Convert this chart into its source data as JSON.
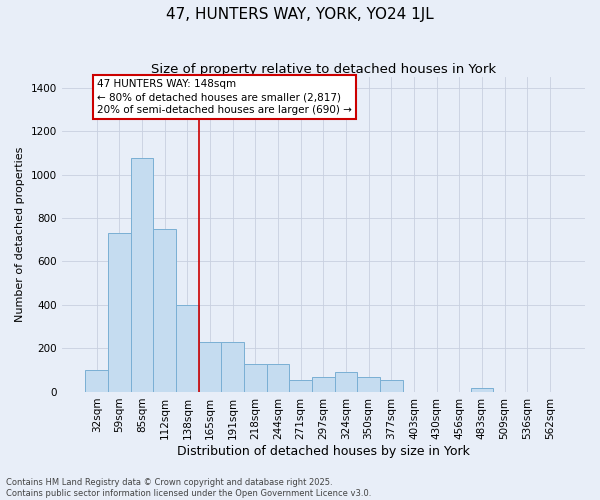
{
  "title": "47, HUNTERS WAY, YORK, YO24 1JL",
  "subtitle": "Size of property relative to detached houses in York",
  "xlabel": "Distribution of detached houses by size in York",
  "ylabel": "Number of detached properties",
  "categories": [
    "32sqm",
    "59sqm",
    "85sqm",
    "112sqm",
    "138sqm",
    "165sqm",
    "191sqm",
    "218sqm",
    "244sqm",
    "271sqm",
    "297sqm",
    "324sqm",
    "350sqm",
    "377sqm",
    "403sqm",
    "430sqm",
    "456sqm",
    "483sqm",
    "509sqm",
    "536sqm",
    "562sqm"
  ],
  "values": [
    100,
    730,
    1075,
    750,
    400,
    230,
    230,
    130,
    130,
    55,
    70,
    90,
    70,
    55,
    0,
    0,
    0,
    20,
    0,
    0,
    0
  ],
  "bar_color": "#C5DCF0",
  "bar_edge_color": "#7aafd4",
  "vline_color": "#CC0000",
  "vline_x_index": 4.5,
  "annotation_text": "47 HUNTERS WAY: 148sqm\n← 80% of detached houses are smaller (2,817)\n20% of semi-detached houses are larger (690) →",
  "ylim": [
    0,
    1450
  ],
  "yticks": [
    0,
    200,
    400,
    600,
    800,
    1000,
    1200,
    1400
  ],
  "background_color": "#E8EEF8",
  "grid_color": "#C8D0E0",
  "footer_text": "Contains HM Land Registry data © Crown copyright and database right 2025.\nContains public sector information licensed under the Open Government Licence v3.0.",
  "title_fontsize": 11,
  "subtitle_fontsize": 9.5,
  "xlabel_fontsize": 9,
  "ylabel_fontsize": 8,
  "tick_fontsize": 7.5,
  "annotation_fontsize": 7.5,
  "footer_fontsize": 6
}
